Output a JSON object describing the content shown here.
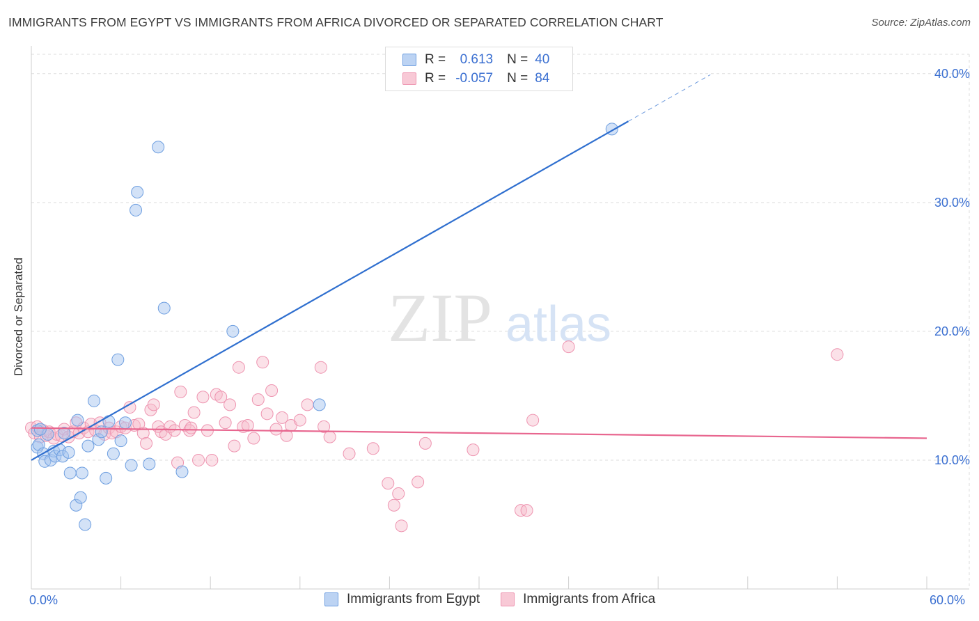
{
  "header": {
    "title": "IMMIGRANTS FROM EGYPT VS IMMIGRANTS FROM AFRICA DIVORCED OR SEPARATED CORRELATION CHART",
    "source": "Source: ZipAtlas.com"
  },
  "watermark": {
    "zip": "ZIP",
    "atlas": "atlas"
  },
  "legend_top": {
    "egypt": {
      "r_key": "R =",
      "r_val": "0.613",
      "n_key": "N =",
      "n_val": "40"
    },
    "africa": {
      "r_key": "R =",
      "r_val": "-0.057",
      "n_key": "N =",
      "n_val": "84"
    }
  },
  "colors": {
    "egypt_fill": "#a8c6ef",
    "egypt_stroke": "#6d9ee0",
    "egypt_line": "#2f6fcf",
    "africa_fill": "#f6bccd",
    "africa_stroke": "#ee94b0",
    "africa_line": "#e8668f",
    "axis_text": "#3a6fd1",
    "grid": "#dddddd"
  },
  "chart_data": {
    "type": "scatter",
    "title": "IMMIGRANTS FROM EGYPT VS IMMIGRANTS FROM AFRICA DIVORCED OR SEPARATED CORRELATION CHART",
    "xlabel": "",
    "ylabel": "Divorced or Separated",
    "xlim": [
      0,
      60
    ],
    "ylim": [
      0,
      41.5
    ],
    "x_tick_labels": [
      "0.0%",
      "60.0%"
    ],
    "y_ticks": [
      10,
      20,
      30,
      40
    ],
    "y_tick_labels": [
      "10.0%",
      "20.0%",
      "30.0%",
      "40.0%"
    ],
    "grid": true,
    "legend_position": "bottom",
    "series": [
      {
        "name": "Immigrants from Egypt",
        "r": 0.613,
        "n": 40,
        "trend": {
          "x0": 0,
          "y0": 10.0,
          "x1": 40.0,
          "y1": 36.3,
          "dash_to_x": 45.5
        },
        "points": [
          [
            0.4,
            12.3
          ],
          [
            0.4,
            11.0
          ],
          [
            0.5,
            11.2
          ],
          [
            0.8,
            10.5
          ],
          [
            0.9,
            9.9
          ],
          [
            1.1,
            12.0
          ],
          [
            1.3,
            10.0
          ],
          [
            1.5,
            10.7
          ],
          [
            1.6,
            10.3
          ],
          [
            1.9,
            10.8
          ],
          [
            2.1,
            10.3
          ],
          [
            2.2,
            12.1
          ],
          [
            2.5,
            10.6
          ],
          [
            2.6,
            9.0
          ],
          [
            3.0,
            6.5
          ],
          [
            3.1,
            13.1
          ],
          [
            3.3,
            7.1
          ],
          [
            3.4,
            9.0
          ],
          [
            3.6,
            5.0
          ],
          [
            3.8,
            11.1
          ],
          [
            4.2,
            14.6
          ],
          [
            4.5,
            11.6
          ],
          [
            4.7,
            12.2
          ],
          [
            5.0,
            8.6
          ],
          [
            5.2,
            13.0
          ],
          [
            5.5,
            10.5
          ],
          [
            5.8,
            17.8
          ],
          [
            6.0,
            11.5
          ],
          [
            6.3,
            12.9
          ],
          [
            6.7,
            9.6
          ],
          [
            7.0,
            29.4
          ],
          [
            7.1,
            30.8
          ],
          [
            7.9,
            9.7
          ],
          [
            8.5,
            34.3
          ],
          [
            8.9,
            21.8
          ],
          [
            10.1,
            9.1
          ],
          [
            13.5,
            20.0
          ],
          [
            19.3,
            14.3
          ],
          [
            38.9,
            35.7
          ],
          [
            0.6,
            12.4
          ]
        ]
      },
      {
        "name": "Immigrants from Africa",
        "r": -0.057,
        "n": 84,
        "trend": {
          "x0": 0,
          "y0": 12.5,
          "x1": 60.0,
          "y1": 11.7
        },
        "points": [
          [
            0.0,
            12.5
          ],
          [
            0.2,
            12.1
          ],
          [
            0.4,
            12.6
          ],
          [
            0.6,
            11.8
          ],
          [
            0.8,
            12.3
          ],
          [
            1.0,
            11.9
          ],
          [
            1.2,
            12.2
          ],
          [
            1.5,
            11.7
          ],
          [
            1.7,
            12.0
          ],
          [
            2.0,
            11.9
          ],
          [
            2.2,
            12.4
          ],
          [
            2.5,
            11.8
          ],
          [
            2.8,
            12.2
          ],
          [
            3.0,
            12.9
          ],
          [
            3.2,
            12.1
          ],
          [
            3.5,
            12.5
          ],
          [
            3.8,
            12.2
          ],
          [
            4.0,
            12.8
          ],
          [
            4.3,
            12.3
          ],
          [
            4.6,
            12.9
          ],
          [
            4.9,
            12.0
          ],
          [
            5.2,
            12.5
          ],
          [
            5.4,
            12.1
          ],
          [
            5.7,
            12.2
          ],
          [
            6.0,
            12.6
          ],
          [
            6.3,
            12.5
          ],
          [
            6.6,
            14.1
          ],
          [
            6.9,
            12.7
          ],
          [
            7.2,
            12.8
          ],
          [
            7.5,
            12.1
          ],
          [
            7.7,
            11.3
          ],
          [
            8.0,
            13.9
          ],
          [
            8.2,
            14.3
          ],
          [
            8.5,
            12.6
          ],
          [
            8.7,
            12.2
          ],
          [
            9.0,
            12.0
          ],
          [
            9.3,
            12.6
          ],
          [
            9.6,
            12.3
          ],
          [
            10.0,
            15.3
          ],
          [
            10.3,
            12.7
          ],
          [
            10.6,
            12.3
          ],
          [
            10.9,
            13.7
          ],
          [
            11.2,
            10.0
          ],
          [
            11.5,
            14.9
          ],
          [
            11.8,
            12.3
          ],
          [
            12.1,
            10.0
          ],
          [
            12.4,
            15.1
          ],
          [
            12.7,
            14.9
          ],
          [
            13.0,
            12.9
          ],
          [
            13.3,
            14.3
          ],
          [
            13.6,
            11.1
          ],
          [
            13.9,
            17.2
          ],
          [
            14.2,
            12.6
          ],
          [
            14.5,
            12.7
          ],
          [
            14.9,
            11.7
          ],
          [
            15.2,
            14.7
          ],
          [
            15.5,
            17.6
          ],
          [
            15.8,
            13.6
          ],
          [
            16.1,
            15.4
          ],
          [
            16.4,
            12.4
          ],
          [
            16.8,
            13.3
          ],
          [
            17.1,
            11.9
          ],
          [
            17.4,
            12.7
          ],
          [
            18.0,
            13.1
          ],
          [
            18.5,
            14.3
          ],
          [
            19.4,
            17.2
          ],
          [
            19.6,
            12.6
          ],
          [
            20.0,
            11.8
          ],
          [
            21.3,
            10.5
          ],
          [
            22.9,
            10.9
          ],
          [
            23.9,
            8.2
          ],
          [
            24.3,
            6.5
          ],
          [
            24.6,
            7.4
          ],
          [
            24.8,
            4.9
          ],
          [
            25.9,
            8.3
          ],
          [
            26.4,
            11.3
          ],
          [
            29.6,
            10.8
          ],
          [
            32.8,
            6.1
          ],
          [
            33.2,
            6.1
          ],
          [
            33.6,
            13.1
          ],
          [
            36.0,
            18.8
          ],
          [
            54.0,
            18.2
          ],
          [
            9.8,
            9.8
          ],
          [
            10.7,
            12.5
          ]
        ]
      }
    ]
  },
  "legend_bottom": {
    "egypt": "Immigrants from Egypt",
    "africa": "Immigrants from Africa"
  }
}
